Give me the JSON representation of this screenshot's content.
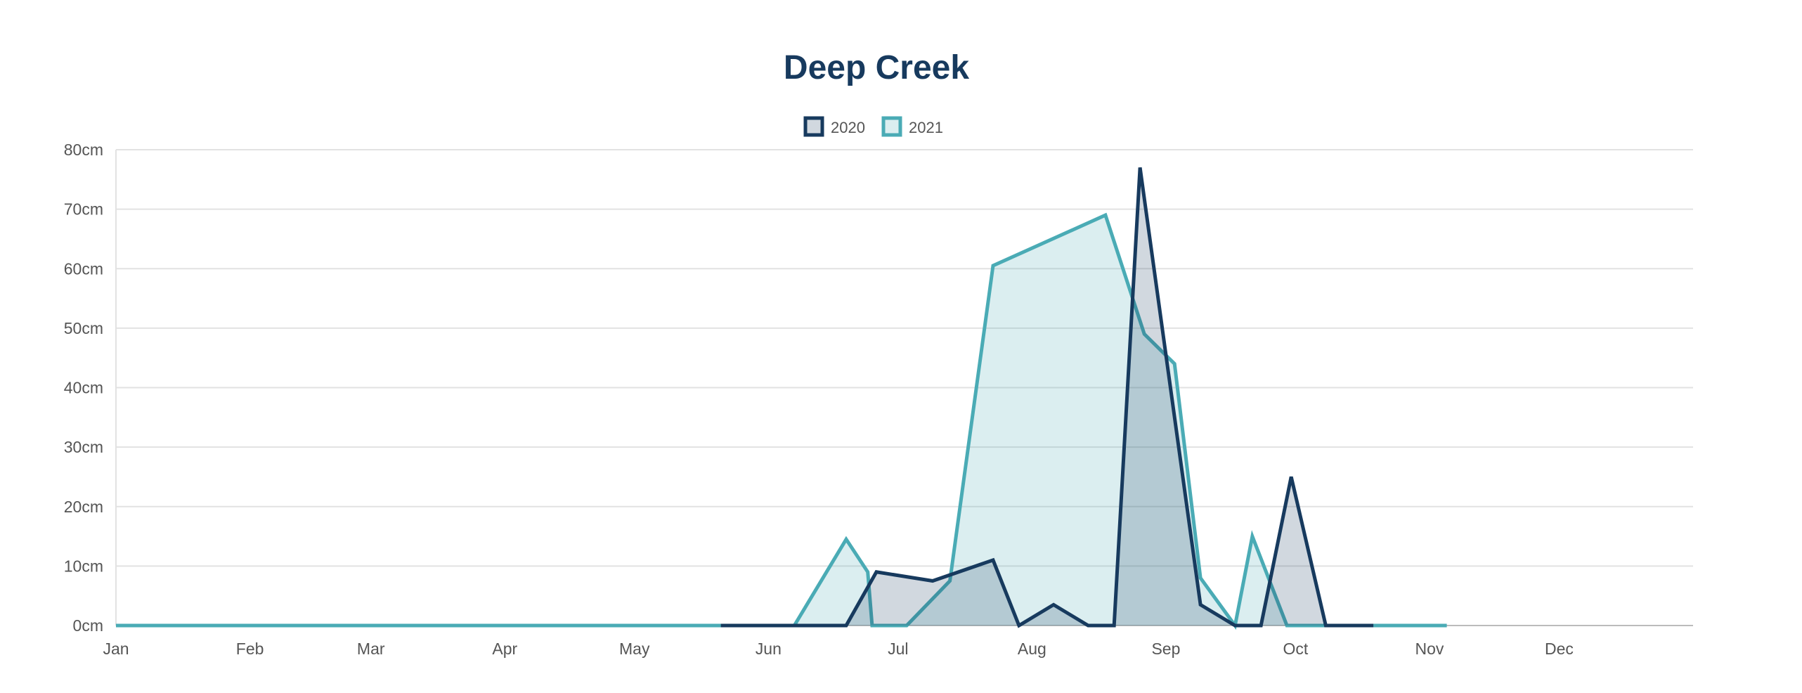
{
  "chart_data": {
    "type": "area",
    "title": "Deep Creek",
    "xlabel": "",
    "ylabel": "",
    "ylim": [
      0,
      80
    ],
    "y_ticks": [
      "0cm",
      "10cm",
      "20cm",
      "30cm",
      "40cm",
      "50cm",
      "60cm",
      "70cm",
      "80cm"
    ],
    "y_tick_values": [
      0,
      10,
      20,
      30,
      40,
      50,
      60,
      70,
      80
    ],
    "x_ticks": [
      "Jan",
      "Feb",
      "Mar",
      "Apr",
      "May",
      "Jun",
      "Jul",
      "Aug",
      "Sep",
      "Oct",
      "Nov",
      "Dec"
    ],
    "grid": true,
    "legend_position": "top-center",
    "series": [
      {
        "name": "2020",
        "color": "#173a5e",
        "fill": "rgba(23,58,94,0.2)",
        "points": [
          [
            "05-21",
            0
          ],
          [
            "06-19",
            0
          ],
          [
            "06-26",
            9
          ],
          [
            "07-09",
            7.5
          ],
          [
            "07-23",
            11
          ],
          [
            "07-29",
            0
          ],
          [
            "08-06",
            3.5
          ],
          [
            "08-14",
            0
          ],
          [
            "08-20",
            0
          ],
          [
            "08-26",
            77
          ],
          [
            "09-09",
            3.5
          ],
          [
            "09-17",
            0
          ],
          [
            "09-23",
            0
          ],
          [
            "09-30",
            25
          ],
          [
            "10-08",
            0
          ],
          [
            "10-19",
            0
          ]
        ]
      },
      {
        "name": "2021",
        "color": "#4aabb5",
        "fill": "rgba(74,171,181,0.2)",
        "points": [
          [
            "01-01",
            0
          ],
          [
            "06-07",
            0
          ],
          [
            "06-19",
            14.5
          ],
          [
            "06-24",
            9
          ],
          [
            "06-25",
            0
          ],
          [
            "07-03",
            0
          ],
          [
            "07-13",
            7.5
          ],
          [
            "07-23",
            60.5
          ],
          [
            "08-18",
            69
          ],
          [
            "08-27",
            49
          ],
          [
            "09-03",
            44
          ],
          [
            "09-09",
            8
          ],
          [
            "09-17",
            0
          ],
          [
            "09-21",
            15
          ],
          [
            "09-29",
            0
          ],
          [
            "11-05",
            0
          ]
        ]
      }
    ]
  }
}
